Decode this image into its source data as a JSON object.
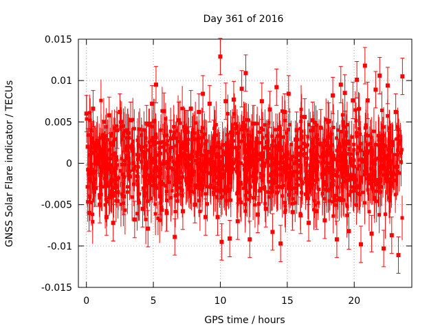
{
  "chart_data": {
    "type": "scatter",
    "title": "Day 361 of 2016",
    "xlabel": "GPS time / hours",
    "ylabel": "GNSS Solar Flare indicator / TECUs",
    "xlim": [
      -0.6,
      24.3
    ],
    "ylim": [
      -0.015,
      0.015
    ],
    "x_ticks": [
      0,
      5,
      10,
      15,
      20
    ],
    "x_tick_labels": [
      "0",
      "5",
      "10",
      "15",
      "20"
    ],
    "y_ticks": [
      -0.015,
      -0.01,
      -0.005,
      0,
      0.005,
      0.01,
      0.015
    ],
    "y_tick_labels": [
      "-0.015",
      "-0.01",
      "-0.005",
      "0",
      "0.005",
      "0.01",
      "0.015"
    ],
    "grid": true,
    "legend": "none",
    "marker_color": "#ff0000",
    "series": [
      {
        "marker": "square",
        "error_bars": true,
        "x": [
          0.0,
          0.1,
          0.2,
          0.35,
          0.5,
          0.7,
          0.9,
          1.0,
          1.3,
          1.5,
          1.7,
          2.0,
          2.3,
          2.5,
          2.8,
          3.0,
          3.3,
          3.6,
          3.9,
          4.2,
          4.5,
          4.6,
          4.9,
          5.2,
          5.5,
          5.8,
          6.0,
          6.3,
          6.6,
          6.9,
          7.2,
          7.5,
          7.8,
          8.1,
          8.4,
          8.7,
          8.9,
          9.2,
          9.5,
          9.8,
          10.0,
          10.1,
          10.4,
          10.7,
          11.0,
          11.3,
          11.6,
          11.9,
          12.2,
          12.5,
          12.8,
          13.1,
          13.4,
          13.7,
          13.9,
          14.2,
          14.5,
          14.8,
          15.1,
          15.4,
          15.7,
          16.0,
          16.3,
          16.6,
          16.9,
          17.2,
          17.5,
          17.8,
          18.1,
          18.4,
          18.7,
          19.0,
          19.3,
          19.6,
          19.9,
          20.2,
          20.5,
          20.8,
          21.0,
          21.3,
          21.6,
          21.9,
          22.2,
          22.5,
          22.8,
          23.1,
          23.3,
          23.6
        ],
        "y": [
          0.006,
          0.002,
          -0.006,
          0.004,
          0.0066,
          -0.003,
          0.001,
          -0.005,
          0.003,
          -0.0065,
          0.0058,
          -0.0072,
          0.004,
          0.0062,
          -0.004,
          0.002,
          0.0052,
          -0.0068,
          0.001,
          -0.0055,
          0.0048,
          -0.0079,
          0.0072,
          0.0095,
          -0.004,
          0.0063,
          -0.006,
          0.003,
          -0.0089,
          0.0052,
          -0.0058,
          0.0042,
          0.0066,
          -0.005,
          0.0062,
          0.0084,
          -0.0065,
          0.0072,
          0.003,
          -0.0065,
          0.0129,
          -0.0095,
          0.0075,
          -0.0091,
          0.0077,
          -0.007,
          0.009,
          0.0109,
          -0.0092,
          0.0048,
          -0.0062,
          0.0075,
          -0.0055,
          0.0065,
          -0.0083,
          0.0092,
          -0.0097,
          0.0062,
          0.0084,
          -0.0059,
          0.004,
          -0.0063,
          0.0056,
          -0.0072,
          0.0052,
          -0.0058,
          0.0043,
          -0.0069,
          0.0051,
          0.0082,
          -0.0092,
          0.0095,
          0.0085,
          -0.0082,
          0.0076,
          0.0101,
          -0.0098,
          0.0118,
          0.0076,
          -0.0085,
          0.0089,
          0.0106,
          -0.0103,
          0.0094,
          -0.0087,
          0.0062,
          -0.0111,
          0.0105
        ]
      }
    ]
  }
}
